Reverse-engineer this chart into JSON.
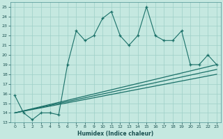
{
  "title": "",
  "xlabel": "Humidex (Indice chaleur)",
  "ylabel": "",
  "background_color": "#c5e8e0",
  "grid_color": "#9ecfc7",
  "line_color": "#1a7068",
  "xlim": [
    -0.5,
    23.5
  ],
  "ylim": [
    13,
    25.5
  ],
  "yticks": [
    13,
    14,
    15,
    16,
    17,
    18,
    19,
    20,
    21,
    22,
    23,
    24,
    25
  ],
  "xticks": [
    0,
    1,
    2,
    3,
    4,
    5,
    6,
    7,
    8,
    9,
    10,
    11,
    12,
    13,
    14,
    15,
    16,
    17,
    18,
    19,
    20,
    21,
    22,
    23
  ],
  "line1_x": [
    0,
    1,
    2,
    3,
    4,
    5,
    6,
    7,
    8,
    9,
    10,
    11,
    12,
    13,
    14,
    15,
    16,
    17,
    18,
    19,
    20,
    21,
    22,
    23
  ],
  "line1_y": [
    15.8,
    14.0,
    13.3,
    14.0,
    14.0,
    13.8,
    19.0,
    22.5,
    21.5,
    22.0,
    23.8,
    24.5,
    22.0,
    21.0,
    22.0,
    25.0,
    22.0,
    21.5,
    21.5,
    22.5,
    19.0,
    19.0,
    20.0,
    19.0
  ],
  "line2_x": [
    0,
    23
  ],
  "line2_y": [
    14.0,
    19.0
  ],
  "line3_x": [
    0,
    23
  ],
  "line3_y": [
    14.0,
    18.5
  ],
  "line4_x": [
    0,
    23
  ],
  "line4_y": [
    14.0,
    18.0
  ]
}
